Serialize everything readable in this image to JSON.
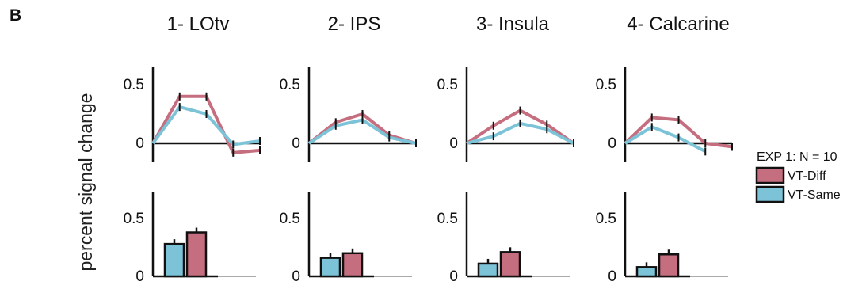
{
  "panel_label": "B",
  "y_axis_label": "percent signal change",
  "colors": {
    "diff": "#c56e7f",
    "same": "#7cc3d8",
    "axis": "#111111",
    "baseline": "#aaaaaa"
  },
  "legend": {
    "title": "EXP 1: N = 10",
    "entries": [
      {
        "label": "VT-Diff",
        "color": "#c56e7f"
      },
      {
        "label": "VT-Same",
        "color": "#7cc3d8"
      }
    ]
  },
  "chart_data": [
    {
      "title": "1- LOtv",
      "line": {
        "type": "line",
        "yticks": [
          "0.5",
          "0"
        ],
        "ylim": [
          -0.05,
          0.6
        ],
        "series": [
          {
            "name": "VT-Diff",
            "values": [
              0.0,
              0.4,
              0.4,
              -0.08,
              -0.06
            ]
          },
          {
            "name": "VT-Same",
            "values": [
              0.0,
              0.31,
              0.25,
              -0.01,
              0.02
            ]
          }
        ]
      },
      "bar": {
        "type": "bar",
        "yticks": [
          "0.5",
          "0"
        ],
        "ylim": [
          0,
          0.6
        ],
        "series": [
          {
            "name": "VT-Same",
            "values": [
              0.28
            ]
          },
          {
            "name": "VT-Diff",
            "values": [
              0.38
            ]
          }
        ]
      }
    },
    {
      "title": "2- IPS",
      "line": {
        "type": "line",
        "yticks": [
          "0.5",
          "0"
        ],
        "ylim": [
          -0.05,
          0.6
        ],
        "series": [
          {
            "name": "VT-Diff",
            "values": [
              0.0,
              0.18,
              0.25,
              0.07,
              0.0
            ]
          },
          {
            "name": "VT-Same",
            "values": [
              0.0,
              0.15,
              0.2,
              0.05,
              0.0
            ]
          }
        ]
      },
      "bar": {
        "type": "bar",
        "yticks": [
          "0.5",
          "0"
        ],
        "ylim": [
          0,
          0.6
        ],
        "series": [
          {
            "name": "VT-Same",
            "values": [
              0.16
            ]
          },
          {
            "name": "VT-Diff",
            "values": [
              0.2
            ]
          }
        ]
      }
    },
    {
      "title": "3- Insula",
      "line": {
        "type": "line",
        "yticks": [
          "0.5",
          "0"
        ],
        "ylim": [
          -0.05,
          0.6
        ],
        "series": [
          {
            "name": "VT-Diff",
            "values": [
              0.0,
              0.15,
              0.28,
              0.16,
              0.0
            ]
          },
          {
            "name": "VT-Same",
            "values": [
              0.0,
              0.06,
              0.17,
              0.12,
              0.0
            ]
          }
        ]
      },
      "bar": {
        "type": "bar",
        "yticks": [
          "0.5",
          "0"
        ],
        "ylim": [
          0,
          0.6
        ],
        "series": [
          {
            "name": "VT-Same",
            "values": [
              0.11
            ]
          },
          {
            "name": "VT-Diff",
            "values": [
              0.21
            ]
          }
        ]
      }
    },
    {
      "title": "4- Calcarine",
      "line": {
        "type": "line",
        "yticks": [
          "0.5",
          "0"
        ],
        "ylim": [
          -0.05,
          0.6
        ],
        "series": [
          {
            "name": "VT-Diff",
            "values": [
              0.0,
              0.22,
              0.2,
              0.0,
              -0.03
            ]
          },
          {
            "name": "VT-Same",
            "values": [
              0.0,
              0.14,
              0.05,
              -0.07,
              null
            ]
          }
        ]
      },
      "bar": {
        "type": "bar",
        "yticks": [
          "0.5",
          "0"
        ],
        "ylim": [
          0,
          0.6
        ],
        "series": [
          {
            "name": "VT-Same",
            "values": [
              0.08
            ]
          },
          {
            "name": "VT-Diff",
            "values": [
              0.19
            ]
          }
        ]
      }
    }
  ]
}
